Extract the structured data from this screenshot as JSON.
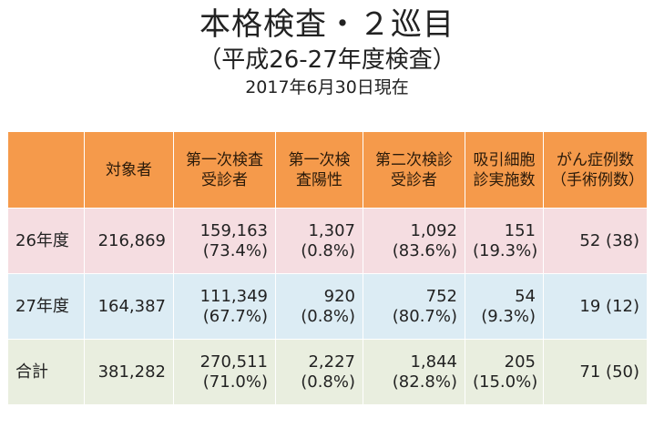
{
  "title": {
    "main": "本格検査・２巡目",
    "sub": "（平成26-27年度検査）",
    "date": "2017年6月30日現在"
  },
  "table": {
    "headers": [
      "",
      "対象者",
      "第一次検査\n受診者",
      "第一次検\n査陽性",
      "第二次検診\n受診者",
      "吸引細胞\n診実施数",
      "がん症例数\n（手術例数）"
    ],
    "rows": [
      {
        "label": "26年度",
        "cells": [
          [
            "216,869"
          ],
          [
            "159,163",
            "(73.4%)"
          ],
          [
            "1,307",
            "(0.8%)"
          ],
          [
            "1,092",
            "(83.6%)"
          ],
          [
            "151",
            "(19.3%)"
          ],
          [
            "52 (38)"
          ]
        ]
      },
      {
        "label": "27年度",
        "cells": [
          [
            "164,387"
          ],
          [
            "111,349",
            "(67.7%)"
          ],
          [
            "920",
            "(0.8%)"
          ],
          [
            "752",
            "(80.7%)"
          ],
          [
            "54",
            "(9.3%)"
          ],
          [
            "19  (12)"
          ]
        ]
      },
      {
        "label": "合計",
        "cells": [
          [
            "381,282"
          ],
          [
            "270,511",
            "(71.0%)"
          ],
          [
            "2,227",
            "(0.8%)"
          ],
          [
            "1,844",
            "(82.8%)"
          ],
          [
            "205",
            "(15.0%)"
          ],
          [
            "71  (50)"
          ]
        ]
      }
    ]
  },
  "colors": {
    "header_bg": "#f59a4b",
    "row_26_bg": "#f5dde1",
    "row_27_bg": "#dcecf4",
    "row_total_bg": "#e9eedf"
  }
}
